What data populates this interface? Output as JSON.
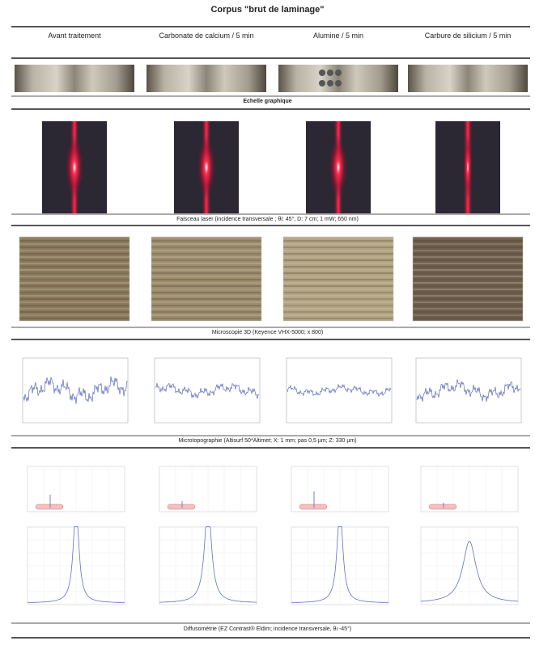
{
  "title": "Corpus \"brut de laminage\"",
  "columns": [
    "Avant traitement",
    "Carbonate de calcium / 5 min",
    "Alumine  / 5 min",
    "Carbure de silicium / 5 min"
  ],
  "sections": {
    "scale": "Echelle graphique",
    "laser": "Faisceau laser (incidence transversale ; θi: 45°, D: 7 cm; 1 mW; 650 nm)",
    "microscopy": "Microscopie 3D (Keyence VHX-5000; x 800)",
    "topography": "Microtopographie (Altisurf 50*Altimet; X: 1 mm; pas 0,5 µm; Z: 330 µm)",
    "diffusion": "Diffusométrie (EZ Contrast® Eldim; incidence transversale, θi -45°)"
  }
}
